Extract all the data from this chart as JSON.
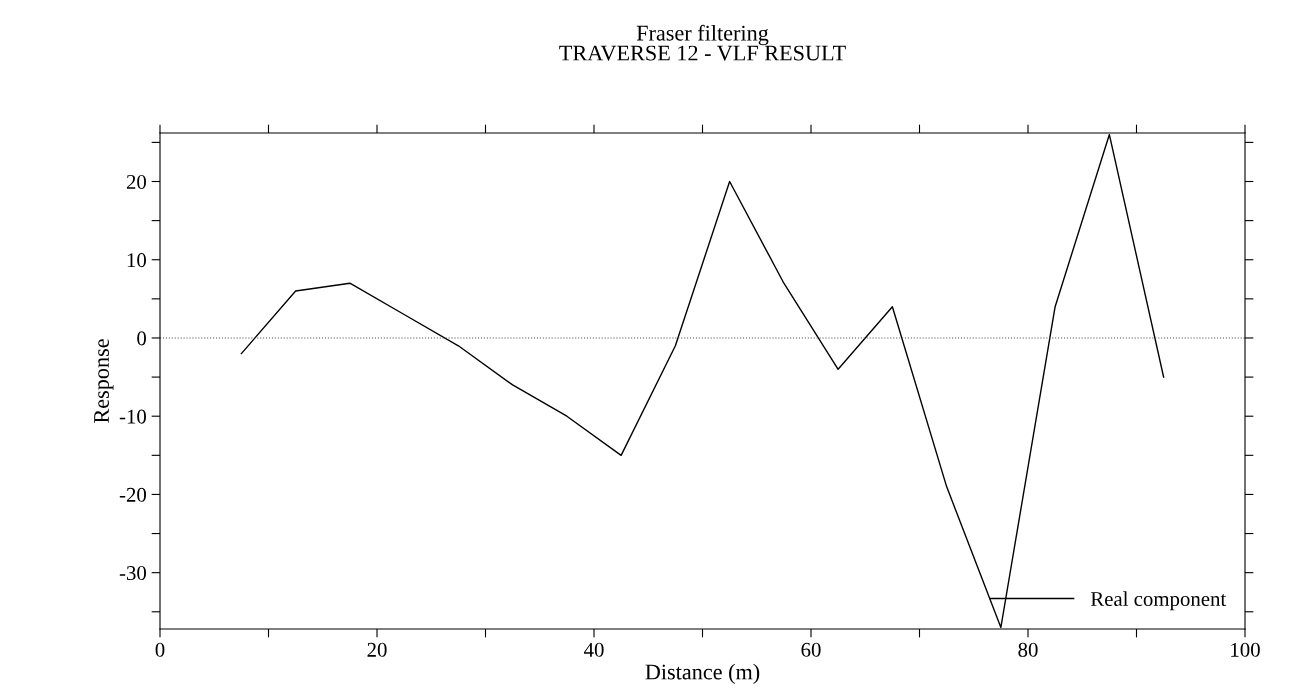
{
  "chart_data": {
    "type": "line",
    "title": "Fraser filtering",
    "subtitle": "TRAVERSE 12 - VLF RESULT",
    "xlabel": "Distance (m)",
    "ylabel": "Response",
    "x": [
      7.5,
      12.5,
      17.5,
      22.5,
      27.5,
      32.5,
      37.5,
      42.5,
      47.5,
      52.5,
      57.5,
      62.5,
      67.5,
      72.5,
      77.5,
      82.5,
      87.5,
      92.5
    ],
    "series": [
      {
        "name": "Real component",
        "color": "#000000",
        "values": [
          -2,
          6,
          7,
          3,
          -1,
          -6,
          -10,
          -15,
          -1,
          20,
          7,
          -4,
          4,
          -19,
          -37,
          4,
          26,
          -5
        ]
      }
    ],
    "xlim": [
      0,
      100
    ],
    "ylim": [
      -37.2,
      26.2
    ],
    "xticks": [
      0,
      {
        "value": 10,
        "label": null
      },
      20,
      {
        "value": 30,
        "label": null
      },
      40,
      {
        "value": 50,
        "label": null
      },
      60,
      {
        "value": 70,
        "label": null
      },
      80,
      {
        "value": 90,
        "label": null
      },
      100
    ],
    "yticks": [
      {
        "value": -35,
        "label": null
      },
      -30,
      {
        "value": -25,
        "label": null
      },
      -20,
      {
        "value": -15,
        "label": null
      },
      -10,
      {
        "value": -5,
        "label": null
      },
      0,
      {
        "value": 5,
        "label": null
      },
      10,
      {
        "value": 15,
        "label": null
      },
      20,
      {
        "value": 25,
        "label": null
      }
    ],
    "ref_lines": [
      {
        "axis": "y",
        "value": 0,
        "color": "#555555",
        "line_style": "dotted"
      }
    ],
    "legend": "bottom right",
    "grid": false,
    "marker": "none",
    "line_style": "solid"
  }
}
